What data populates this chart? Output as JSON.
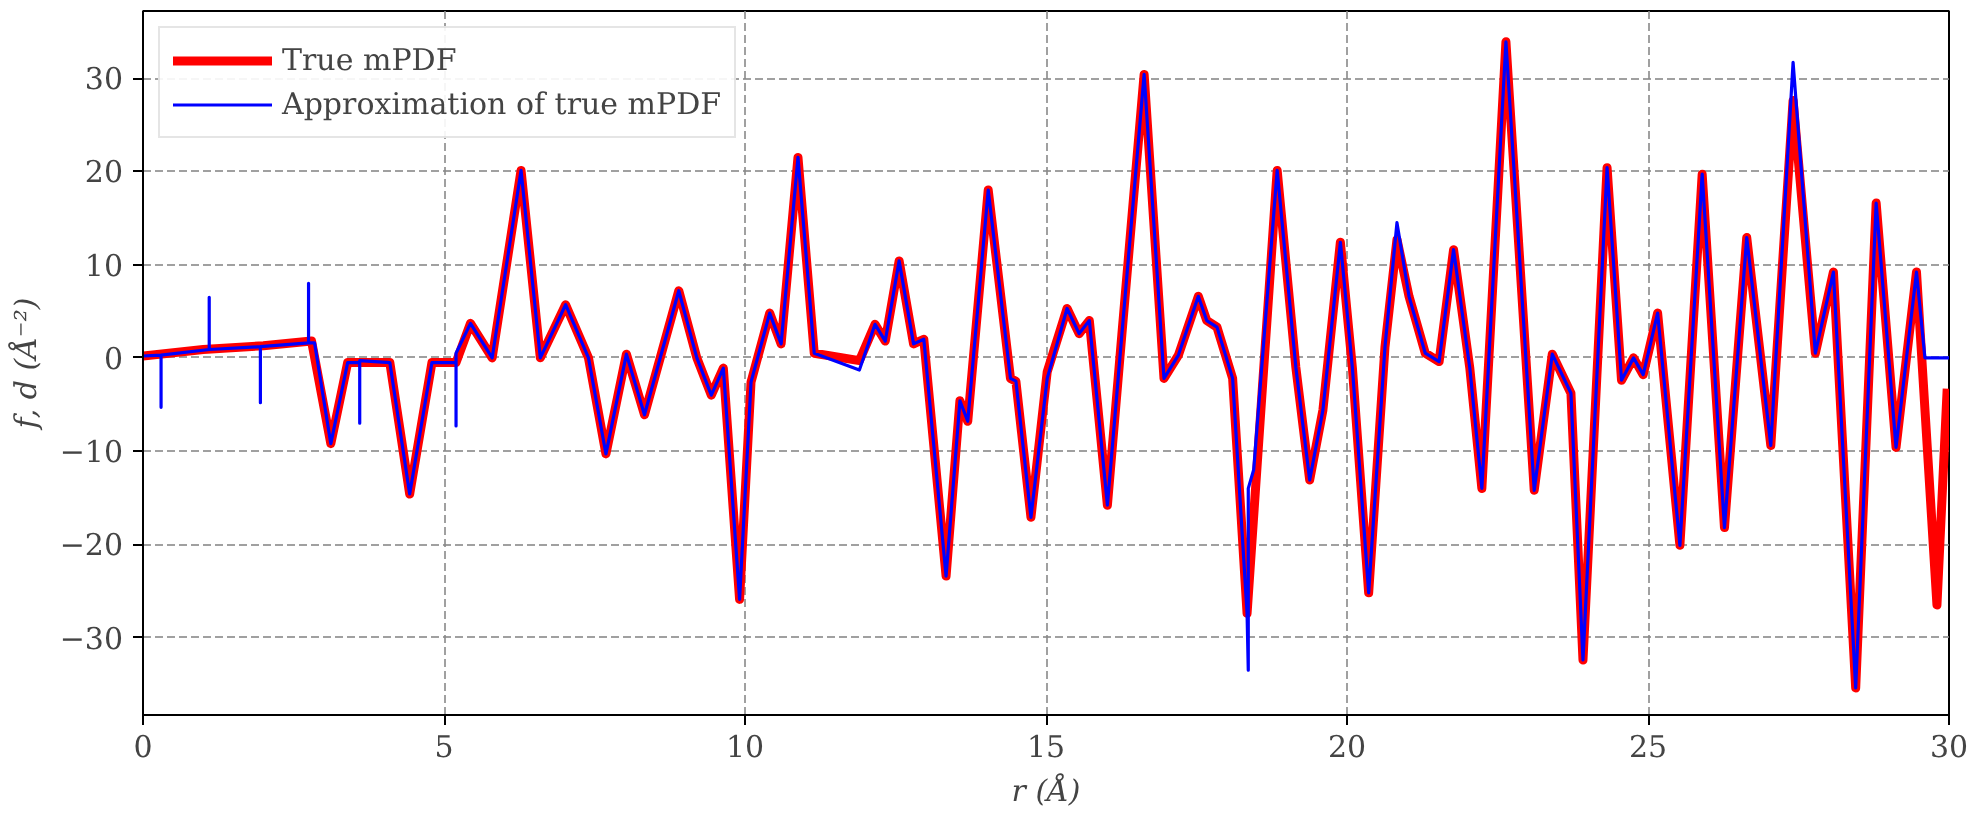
{
  "chart_data": {
    "type": "line",
    "xlabel": "r (Å)",
    "ylabel": "f, d (Å⁻²)",
    "xlim": [
      0,
      30
    ],
    "ylim": [
      -38.3,
      37.2
    ],
    "xticks": [
      0,
      5,
      10,
      15,
      20,
      25,
      30
    ],
    "yticks": [
      -30,
      -20,
      -10,
      0,
      10,
      20,
      30
    ],
    "grid": true,
    "legend": "top left",
    "line_style": "solid",
    "marker": "none",
    "series": [
      {
        "name": "True mPDF",
        "color": "#ff0000",
        "x": [
          0,
          1,
          2,
          2.8,
          3.12,
          3.4,
          4.1,
          4.43,
          4.8,
          5.2,
          5.44,
          5.8,
          6.28,
          6.6,
          7.02,
          7.4,
          7.69,
          8.03,
          8.33,
          8.9,
          9.2,
          9.44,
          9.64,
          9.91,
          10.1,
          10.41,
          10.6,
          10.88,
          11.15,
          11.9,
          12.16,
          12.33,
          12.56,
          12.8,
          12.97,
          13.34,
          13.57,
          13.7,
          14.04,
          14.41,
          14.5,
          14.75,
          15.02,
          15.35,
          15.55,
          15.72,
          16.02,
          16.26,
          16.63,
          16.96,
          17.2,
          17.53,
          17.67,
          17.84,
          18.1,
          18.34,
          18.84,
          19.15,
          19.38,
          19.6,
          19.89,
          20.09,
          20.36,
          20.63,
          20.83,
          21.03,
          21.3,
          21.53,
          21.77,
          22.04,
          22.24,
          22.64,
          23.11,
          23.41,
          23.72,
          23.92,
          24.32,
          24.56,
          24.76,
          24.92,
          25.16,
          25.53,
          25.9,
          26.27,
          26.64,
          27.04,
          27.41,
          27.78,
          28.08,
          28.45,
          28.79,
          29.12,
          29.46,
          29.8,
          29.97
        ],
        "values": [
          0.2,
          0.9,
          1.3,
          1.8,
          -9.2,
          -0.5,
          -0.5,
          -14.6,
          -0.5,
          -0.5,
          3.7,
          0,
          20.1,
          0,
          5.7,
          0,
          -10.3,
          0.4,
          -6.1,
          7.2,
          0,
          -4,
          -1.1,
          -25.9,
          -2.6,
          4.8,
          1.5,
          21.5,
          0.5,
          -0.3,
          3.6,
          1.8,
          10.4,
          1.5,
          2,
          -23.4,
          -4.6,
          -6.8,
          18,
          -2.2,
          -2.5,
          -17.1,
          -1.5,
          5.3,
          2.6,
          4,
          -15.8,
          2.5,
          30.4,
          -2.2,
          0.3,
          6.6,
          4,
          3.3,
          -2.2,
          -27.4,
          20.1,
          -1,
          -13.1,
          -5.6,
          12.4,
          -1.1,
          -25.2,
          1.1,
          12.7,
          6.6,
          0.5,
          -0.4,
          11.6,
          -1.1,
          -14,
          33.9,
          -14.2,
          0.4,
          -3.8,
          -32.4,
          20.4,
          -2.4,
          0,
          -1.8,
          4.8,
          -20.1,
          19.7,
          -18.2,
          12.9,
          -9.4,
          27.6,
          0.5,
          9.2,
          -35.4,
          16.6,
          -9.6,
          9.2,
          -26.5,
          -3.3
        ]
      },
      {
        "name": "Approximation of true mPDF",
        "color": "#0000ff",
        "x": [
          0,
          0.3,
          0.3,
          0.3,
          1.1,
          1.1,
          1.1,
          1.95,
          1.95,
          1.95,
          2.75,
          2.75,
          2.75,
          2.85,
          3.12,
          3.4,
          3.6,
          3.6,
          3.6,
          4.1,
          4.43,
          4.8,
          5.2,
          5.2,
          5.2,
          5.44,
          5.8,
          6.28,
          6.6,
          7.02,
          7.4,
          7.69,
          8.03,
          8.33,
          8.9,
          9.2,
          9.44,
          9.64,
          9.91,
          10.1,
          10.41,
          10.6,
          10.88,
          11.15,
          11.9,
          12.16,
          12.33,
          12.56,
          12.8,
          12.97,
          13.34,
          13.57,
          13.7,
          14.04,
          14.41,
          14.5,
          14.75,
          15.02,
          15.35,
          15.55,
          15.72,
          16.02,
          16.26,
          16.63,
          16.96,
          17.2,
          17.53,
          17.67,
          17.84,
          18.1,
          18.34,
          18.36,
          18.36,
          18.45,
          18.84,
          19.15,
          19.38,
          19.6,
          19.89,
          20.09,
          20.36,
          20.63,
          20.83,
          21.03,
          21.3,
          21.53,
          21.77,
          22.04,
          22.24,
          22.64,
          23.11,
          23.41,
          23.72,
          23.92,
          24.32,
          24.56,
          24.76,
          24.92,
          25.16,
          25.53,
          25.9,
          26.27,
          26.64,
          27.04,
          27.41,
          27.78,
          28.08,
          28.45,
          28.79,
          29.12,
          29.46,
          29.6,
          30
        ],
        "values": [
          0.2,
          0.3,
          -5.3,
          0.3,
          0.9,
          6.5,
          0.9,
          1.2,
          -4.8,
          1.2,
          1.6,
          8,
          1.6,
          1.6,
          -9.2,
          -0.5,
          -0.5,
          -7,
          -0.3,
          -0.5,
          -14.6,
          -0.5,
          -0.5,
          -7.3,
          0.5,
          3.7,
          0,
          20.1,
          0,
          5.7,
          0,
          -10.3,
          0.4,
          -6.1,
          7.2,
          0,
          -4,
          -1.1,
          -25.9,
          -2.6,
          4.8,
          1.5,
          21.5,
          0.5,
          -1.3,
          3.6,
          1.8,
          10.4,
          1.5,
          2,
          -23.4,
          -4.6,
          -6.8,
          18,
          -2.2,
          -2.5,
          -17.1,
          -2.2,
          5.3,
          2.6,
          4,
          -15.8,
          2.5,
          30.4,
          -2.2,
          0.3,
          6.6,
          4,
          3.3,
          -2.2,
          -27.4,
          -33.5,
          -14,
          -12,
          20.1,
          -1,
          -13.1,
          -5.6,
          12.4,
          -1.1,
          -25.2,
          1.1,
          14.5,
          6.6,
          0.5,
          -0.4,
          11.6,
          -1.1,
          -14,
          33.9,
          -14.2,
          0.4,
          -3.8,
          -32.4,
          20.4,
          -2.4,
          0,
          -1.8,
          4.8,
          -20.1,
          19.7,
          -18.2,
          12.9,
          -9.4,
          31.7,
          0.5,
          9.2,
          -35.4,
          16.6,
          -9.6,
          9.2,
          0,
          0
        ]
      }
    ]
  }
}
